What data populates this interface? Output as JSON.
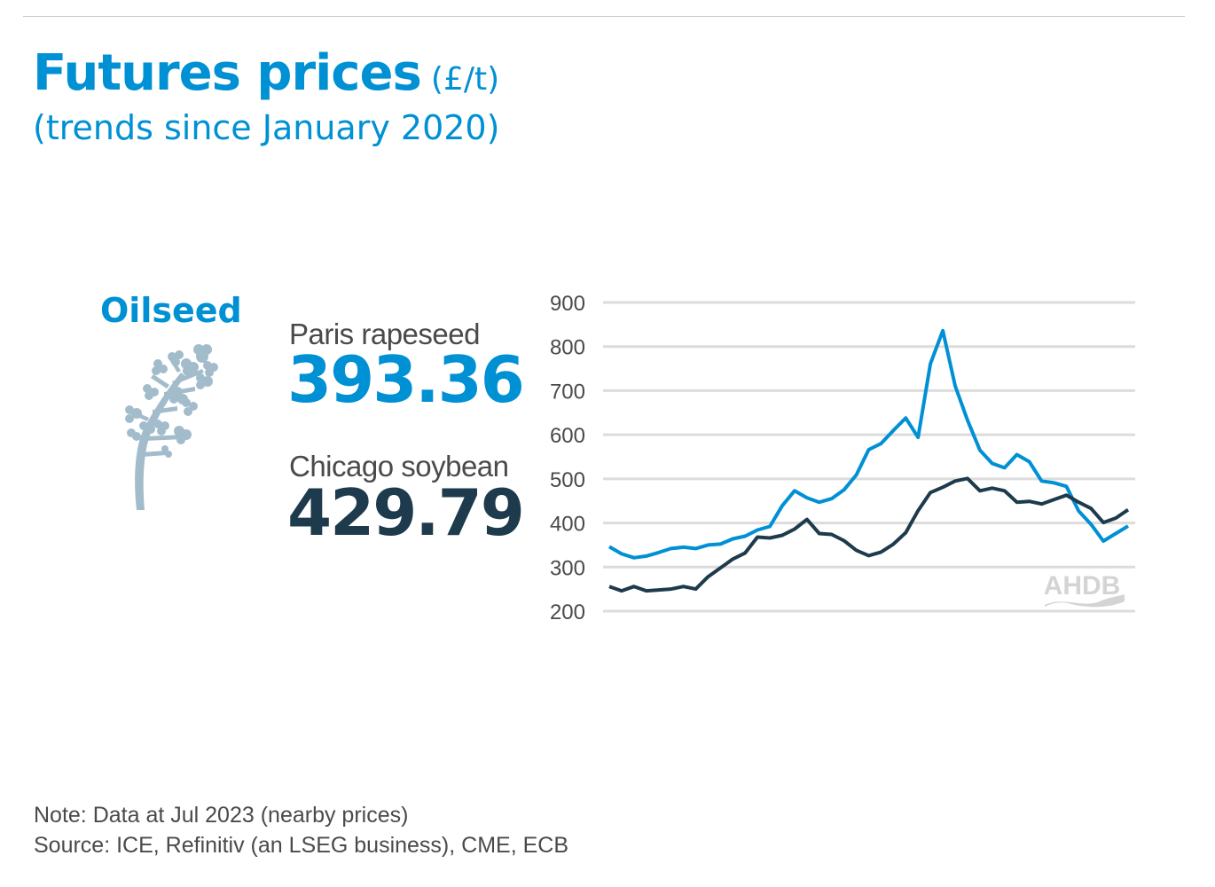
{
  "header": {
    "title": "Futures prices",
    "unit": "(£/t)",
    "subtitle": "(trends since January 2020)"
  },
  "panel": {
    "category": "Oilseed",
    "icon": "rapeseed-plant-icon",
    "items": [
      {
        "label": "Paris rapeseed",
        "value": "393.36",
        "color": "#0090d4"
      },
      {
        "label": "Chicago soybean",
        "value": "429.79",
        "color": "#1d3b4c"
      }
    ]
  },
  "watermark": "AHDB",
  "footer": {
    "note": "Note: Data at Jul 2023 (nearby prices)",
    "source": "Source: ICE, Refinitiv (an LSEG business), CME, ECB"
  },
  "chart_data": {
    "type": "line",
    "title": "",
    "xlabel": "",
    "ylabel": "",
    "x_description": "monthly, Jan 2020 to Jul 2023",
    "ylim": [
      200,
      900
    ],
    "yticks": [
      "900",
      "800",
      "700",
      "600",
      "500",
      "400",
      "300",
      "200"
    ],
    "ytick_values": [
      900,
      800,
      700,
      600,
      500,
      400,
      300,
      200
    ],
    "grid": true,
    "series": [
      {
        "name": "Paris rapeseed",
        "color": "#0090d4",
        "values": [
          346,
          330,
          321,
          325,
          333,
          342,
          345,
          342,
          350,
          352,
          364,
          370,
          384,
          392,
          439,
          473,
          457,
          447,
          455,
          475,
          509,
          566,
          580,
          610,
          638,
          594,
          761,
          836,
          711,
          633,
          565,
          535,
          525,
          555,
          539,
          495,
          491,
          483,
          427,
          397,
          359,
          376,
          393
        ]
      },
      {
        "name": "Chicago soybean",
        "color": "#1d3b4c",
        "values": [
          256,
          246,
          256,
          246,
          248,
          250,
          256,
          250,
          278,
          298,
          318,
          332,
          368,
          366,
          372,
          386,
          408,
          376,
          374,
          360,
          338,
          326,
          334,
          352,
          378,
          428,
          469,
          481,
          495,
          501,
          473,
          479,
          473,
          447,
          449,
          443,
          453,
          463,
          447,
          433,
          401,
          411,
          430
        ]
      }
    ]
  }
}
